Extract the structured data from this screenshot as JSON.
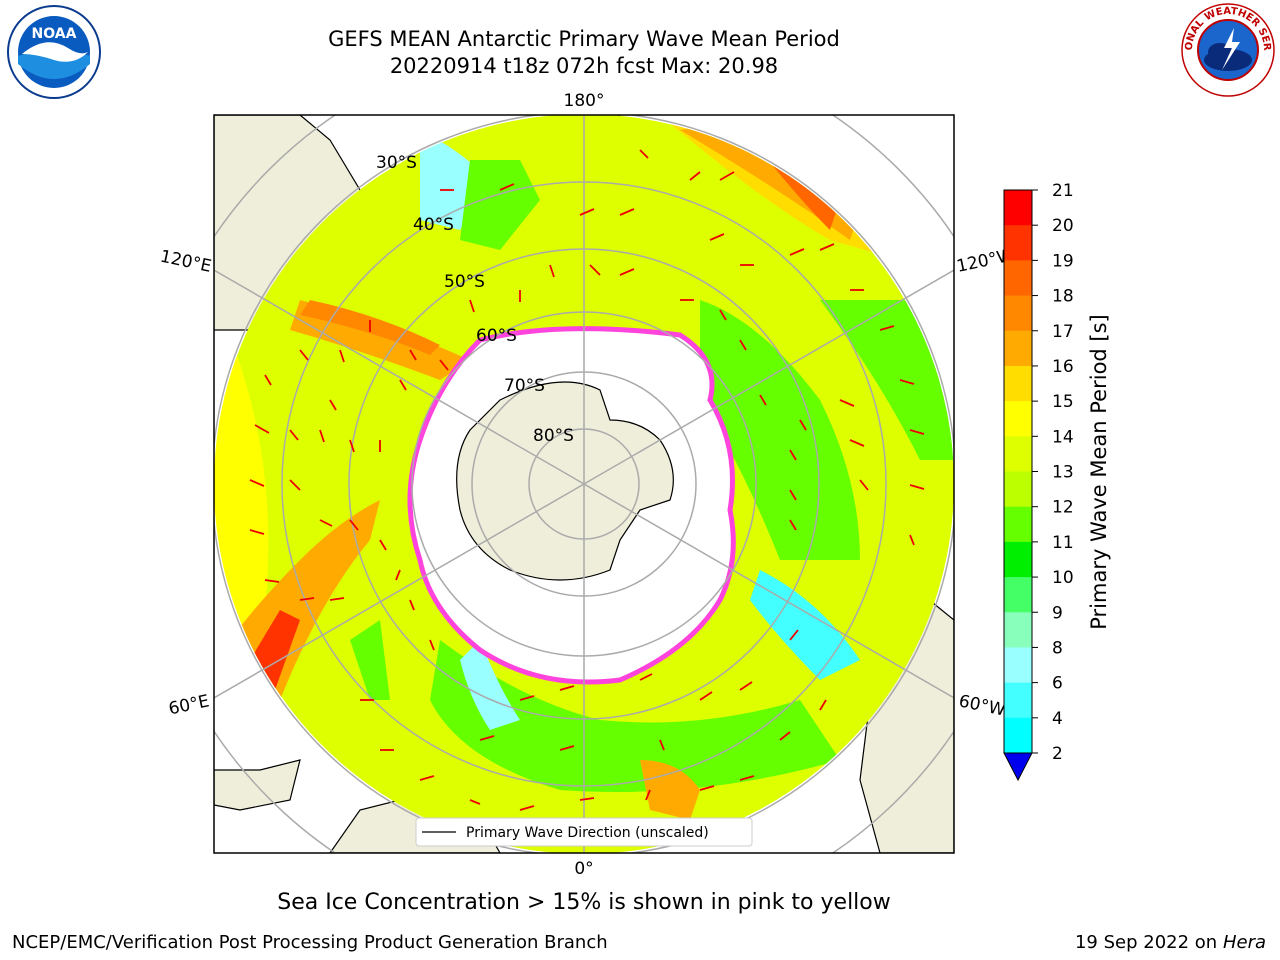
{
  "header": {
    "title_line1": "GEFS MEAN Antarctic Primary Wave Mean Period",
    "title_line2": "20220914 t18z 072h fcst   Max: 20.98"
  },
  "logos": {
    "left": {
      "icon": "noaa-logo-icon",
      "text": "NOAA"
    },
    "right": {
      "icon": "nws-logo-icon",
      "text": "NATIONAL WEATHER SERVICE"
    }
  },
  "map": {
    "longitude_labels": {
      "top": "180°",
      "bottom": "0°",
      "left_upper": "120°E",
      "left_lower": "60°E",
      "right_upper": "120°W",
      "right_lower": "60°W"
    },
    "latitude_labels": [
      "30°S",
      "40°S",
      "50°S",
      "60°S",
      "70°S",
      "80°S"
    ],
    "legend_label": "Primary Wave Direction (unscaled)"
  },
  "colorbar": {
    "label": "Primary Wave Mean Period [s]",
    "ticks": [
      "21",
      "20",
      "19",
      "18",
      "17",
      "16",
      "15",
      "14",
      "13",
      "12",
      "11",
      "10",
      "9",
      "8",
      "6",
      "4",
      "2"
    ],
    "colors": [
      "#ff0000",
      "#ff3300",
      "#ff6600",
      "#ff8800",
      "#ffaa00",
      "#ffdd00",
      "#ffff00",
      "#ddff00",
      "#bbff00",
      "#66ff00",
      "#00ee00",
      "#44ff66",
      "#88ffbb",
      "#99ffff",
      "#44ffff",
      "#00ffff",
      "#0088ff"
    ]
  },
  "caption": "Sea Ice Concentration > 15% is shown in pink to yellow",
  "footer": {
    "left": "NCEP/EMC/Verification Post Processing Product Generation Branch",
    "right_date": "19 Sep 2022 on",
    "right_host": "Hera"
  }
}
